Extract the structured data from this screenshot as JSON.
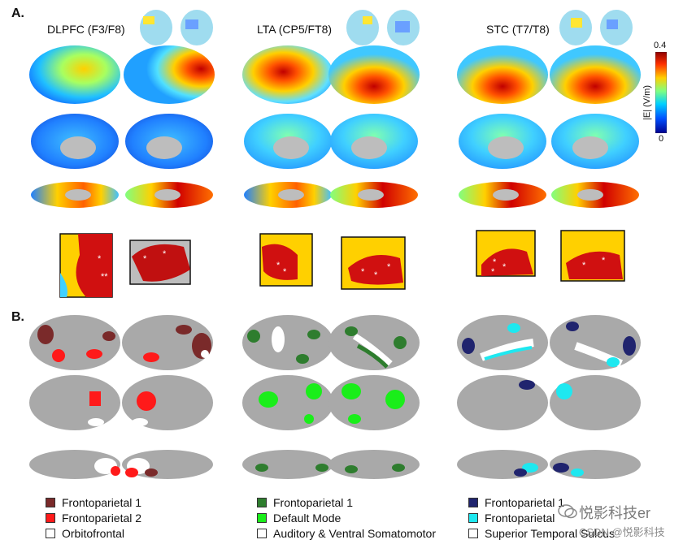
{
  "panels": {
    "a_label": "A.",
    "b_label": "B."
  },
  "columns": [
    {
      "title": "DLPFC (F3/F8)"
    },
    {
      "title": "LTA (CP5/FT8)"
    },
    {
      "title": "STC (T7/T8)"
    }
  ],
  "colorbar": {
    "max_label": "0.4",
    "min_label": "0",
    "title": "|E| (V/m)",
    "colors": [
      "#00008f",
      "#0050ff",
      "#00d0ff",
      "#80ff80",
      "#ffd000",
      "#ff3000",
      "#8f0000"
    ]
  },
  "legends": [
    {
      "items": [
        {
          "label": "Frontoparietal 1",
          "color": "#7a2a2a"
        },
        {
          "label": "Frontoparietal 2",
          "color": "#ff1a1a"
        },
        {
          "label": "Orbitofrontal",
          "color": "#ffffff"
        }
      ]
    },
    {
      "items": [
        {
          "label": "Frontoparietal 1",
          "color": "#2e7d2e"
        },
        {
          "label": "Default Mode",
          "color": "#1aee1a"
        },
        {
          "label": "Auditory & Ventral Somatomotor",
          "color": "#ffffff"
        }
      ]
    },
    {
      "items": [
        {
          "label": "Frontoparietal 1",
          "color": "#20246e"
        },
        {
          "label": "Frontoparietal",
          "color": "#1ee8f0"
        },
        {
          "label": "Superior Temporal Sulcus",
          "color": "#ffffff"
        }
      ]
    }
  ],
  "region_colors": {
    "grey_cortex": "#a9a9a9",
    "medial_wall": "#bdbdbd"
  },
  "watermark": {
    "brand": "悦影科技er",
    "credit": "CSDN @悦影科技"
  }
}
